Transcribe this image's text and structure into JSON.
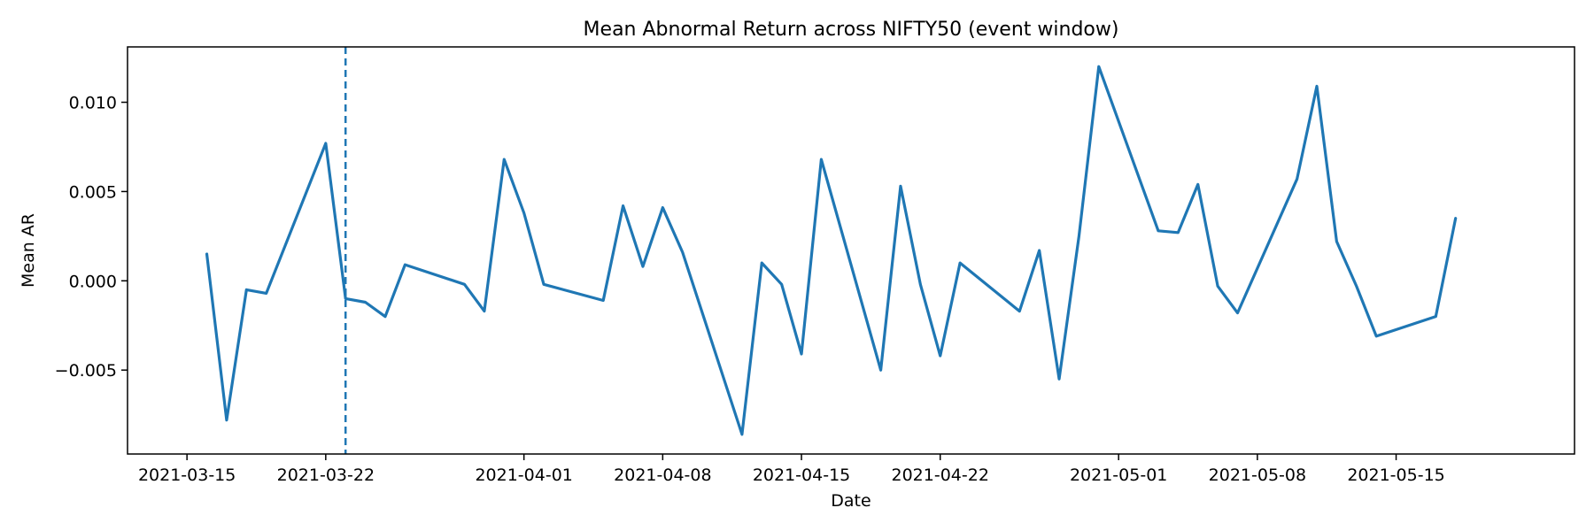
{
  "chart_data": {
    "type": "line",
    "title": "Mean Abnormal Return across NIFTY50 (event window)",
    "xlabel": "Date",
    "ylabel": "Mean AR",
    "xlim": [
      "2021-03-12",
      "2021-05-24"
    ],
    "ylim": [
      -0.0097,
      0.0131
    ],
    "x_ticks": [
      "2021-03-15",
      "2021-03-22",
      "2021-04-01",
      "2021-04-08",
      "2021-04-15",
      "2021-04-22",
      "2021-05-01",
      "2021-05-08",
      "2021-05-15"
    ],
    "y_ticks": [
      {
        "value": -0.005,
        "label": "−0.005"
      },
      {
        "value": 0.0,
        "label": "0.000"
      },
      {
        "value": 0.005,
        "label": "0.005"
      },
      {
        "value": 0.01,
        "label": "0.010"
      }
    ],
    "grid": false,
    "event_line": {
      "date": "2021-03-23",
      "style": "dashed"
    },
    "series": [
      {
        "color": "#1f77b4",
        "points": [
          [
            "2021-03-16",
            0.0015
          ],
          [
            "2021-03-17",
            -0.0078
          ],
          [
            "2021-03-18",
            -0.0005
          ],
          [
            "2021-03-19",
            -0.0007
          ],
          [
            "2021-03-22",
            0.0077
          ],
          [
            "2021-03-23",
            -0.001
          ],
          [
            "2021-03-24",
            -0.0012
          ],
          [
            "2021-03-25",
            -0.002
          ],
          [
            "2021-03-26",
            0.0009
          ],
          [
            "2021-03-29",
            -0.0002
          ],
          [
            "2021-03-30",
            -0.0017
          ],
          [
            "2021-03-31",
            0.0068
          ],
          [
            "2021-04-01",
            0.0038
          ],
          [
            "2021-04-02",
            -0.0002
          ],
          [
            "2021-04-05",
            -0.0011
          ],
          [
            "2021-04-06",
            0.0042
          ],
          [
            "2021-04-07",
            0.0008
          ],
          [
            "2021-04-08",
            0.0041
          ],
          [
            "2021-04-09",
            0.0016
          ],
          [
            "2021-04-12",
            -0.0086
          ],
          [
            "2021-04-13",
            0.001
          ],
          [
            "2021-04-14",
            -0.0002
          ],
          [
            "2021-04-15",
            -0.0041
          ],
          [
            "2021-04-16",
            0.0068
          ],
          [
            "2021-04-19",
            -0.005
          ],
          [
            "2021-04-20",
            0.0053
          ],
          [
            "2021-04-21",
            -0.0002
          ],
          [
            "2021-04-22",
            -0.0042
          ],
          [
            "2021-04-23",
            0.001
          ],
          [
            "2021-04-26",
            -0.0017
          ],
          [
            "2021-04-27",
            0.0017
          ],
          [
            "2021-04-28",
            -0.0055
          ],
          [
            "2021-04-29",
            0.0025
          ],
          [
            "2021-04-30",
            0.012
          ],
          [
            "2021-05-03",
            0.0028
          ],
          [
            "2021-05-04",
            0.0027
          ],
          [
            "2021-05-05",
            0.0054
          ],
          [
            "2021-05-06",
            -0.0003
          ],
          [
            "2021-05-07",
            -0.0018
          ],
          [
            "2021-05-10",
            0.0057
          ],
          [
            "2021-05-11",
            0.0109
          ],
          [
            "2021-05-12",
            0.0022
          ],
          [
            "2021-05-13",
            -0.0003
          ],
          [
            "2021-05-14",
            -0.0031
          ],
          [
            "2021-05-17",
            -0.002
          ],
          [
            "2021-05-18",
            0.0035
          ]
        ]
      }
    ]
  }
}
